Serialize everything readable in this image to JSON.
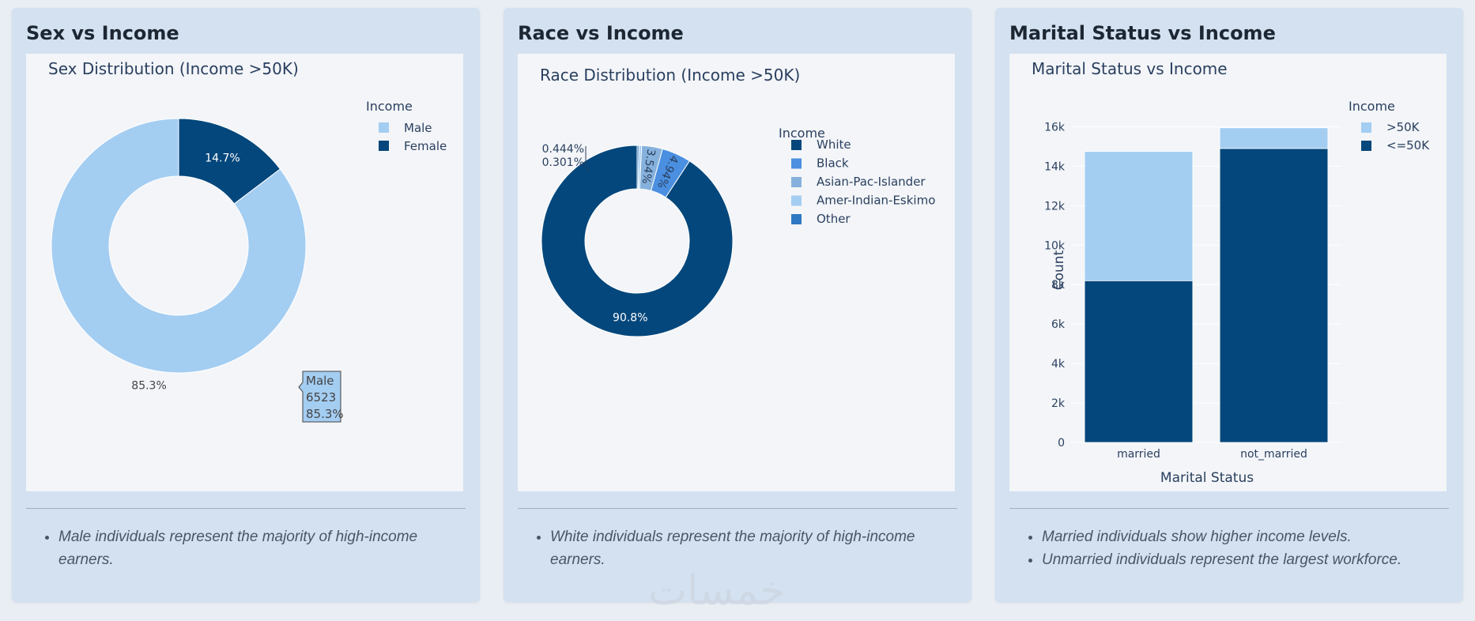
{
  "cards": [
    {
      "title": "Sex vs Income",
      "notes": [
        "Male individuals represent the majority of high-income earners."
      ]
    },
    {
      "title": "Race vs Income",
      "notes": [
        "White individuals represent the majority of high-income earners."
      ]
    },
    {
      "title": "Marital Status vs Income",
      "notes": [
        "Married individuals show higher income levels.",
        "Unmarried individuals represent the largest workforce."
      ]
    }
  ],
  "tooltip": {
    "lines": [
      "Male",
      "6523",
      "85.3%"
    ]
  },
  "watermark": "خمسات",
  "colors": {
    "dark_blue": "#03477c",
    "light_blue": "#a4cdf2",
    "mid_blue": "#4a8fe0",
    "steel_blue": "#86b1dc",
    "other_blue": "#2f78c2"
  },
  "chart_data": [
    {
      "type": "pie",
      "hole": true,
      "title": "Sex Distribution (Income >50K)",
      "legend_title": "Income",
      "legend_position": "top-right",
      "labels": [
        "Male",
        "Female"
      ],
      "values": [
        85.3,
        14.7
      ],
      "text_labels": [
        "85.3%",
        "14.7%"
      ],
      "colors": [
        "#a4cdf2",
        "#03477c"
      ]
    },
    {
      "type": "pie",
      "hole": true,
      "title": "Race Distribution (Income >50K)",
      "legend_title": "Income",
      "legend_position": "top-right",
      "labels": [
        "White",
        "Black",
        "Asian-Pac-Islander",
        "Amer-Indian-Eskimo",
        "Other"
      ],
      "values": [
        90.8,
        4.94,
        3.54,
        0.444,
        0.301
      ],
      "text_labels": [
        "90.8%",
        "4.94%",
        "3.54%",
        "0.444%",
        "0.301%"
      ],
      "colors": [
        "#03477c",
        "#4a8fe0",
        "#86b1dc",
        "#a4cdf2",
        "#2f78c2"
      ]
    },
    {
      "type": "bar",
      "stacked": true,
      "title": "Marital Status vs Income",
      "xlabel": "Marital Status",
      "ylabel": "Count",
      "categories": [
        "married",
        "not_married"
      ],
      "series": [
        {
          "name": "<=50K",
          "values": [
            8200,
            14900
          ],
          "color": "#03477c"
        },
        {
          "name": ">50K",
          "values": [
            6550,
            1050
          ],
          "color": "#a4cdf2"
        }
      ],
      "legend_order": [
        ">50K",
        "<=50K"
      ],
      "legend_title": "Income",
      "legend_position": "top-right",
      "ylim": [
        0,
        16500
      ],
      "yticks": [
        0,
        2000,
        4000,
        6000,
        8000,
        10000,
        12000,
        14000,
        16000
      ],
      "ytick_labels": [
        "0",
        "2k",
        "4k",
        "6k",
        "8k",
        "10k",
        "12k",
        "14k",
        "16k"
      ]
    }
  ]
}
